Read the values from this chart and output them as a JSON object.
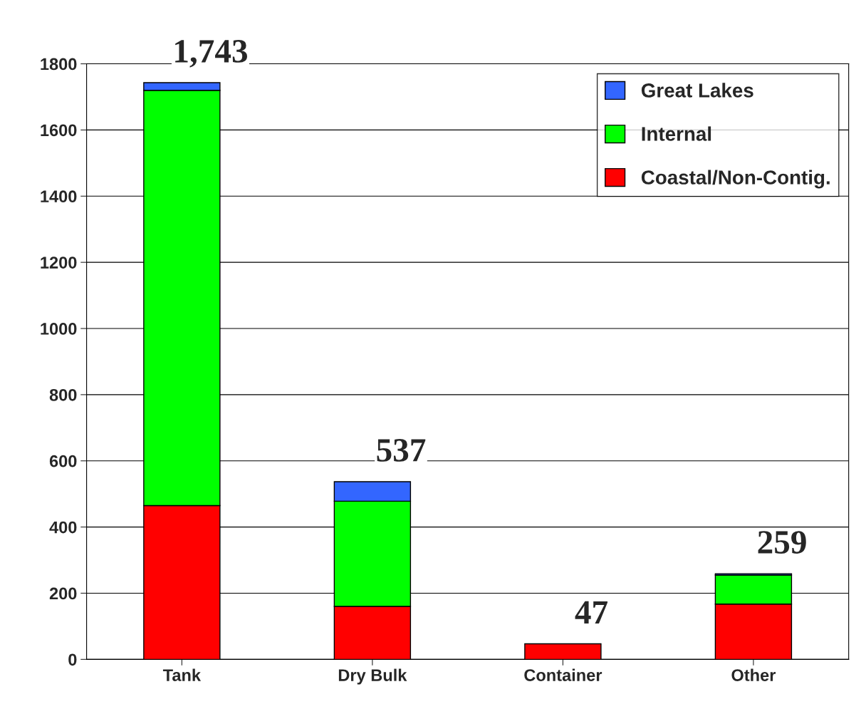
{
  "chart_data": {
    "type": "bar",
    "stacked": true,
    "categories": [
      "Tank",
      "Dry Bulk",
      "Container",
      "Other"
    ],
    "series": [
      {
        "name": "Coastal/Non-Contig.",
        "color": "#ff0000",
        "values": [
          465,
          160,
          47,
          167
        ]
      },
      {
        "name": "Internal",
        "color": "#00ff00",
        "values": [
          1255,
          318,
          0,
          88
        ]
      },
      {
        "name": "Great Lakes",
        "color": "#3366ff",
        "values": [
          23,
          59,
          0,
          4
        ]
      }
    ],
    "totals": [
      "1,743",
      "537",
      "47",
      "259"
    ],
    "ylim": [
      0,
      1800
    ],
    "yticks": [
      0,
      200,
      400,
      600,
      800,
      1000,
      1200,
      1400,
      1600,
      1800
    ],
    "grid": "y",
    "legend": "top right"
  }
}
